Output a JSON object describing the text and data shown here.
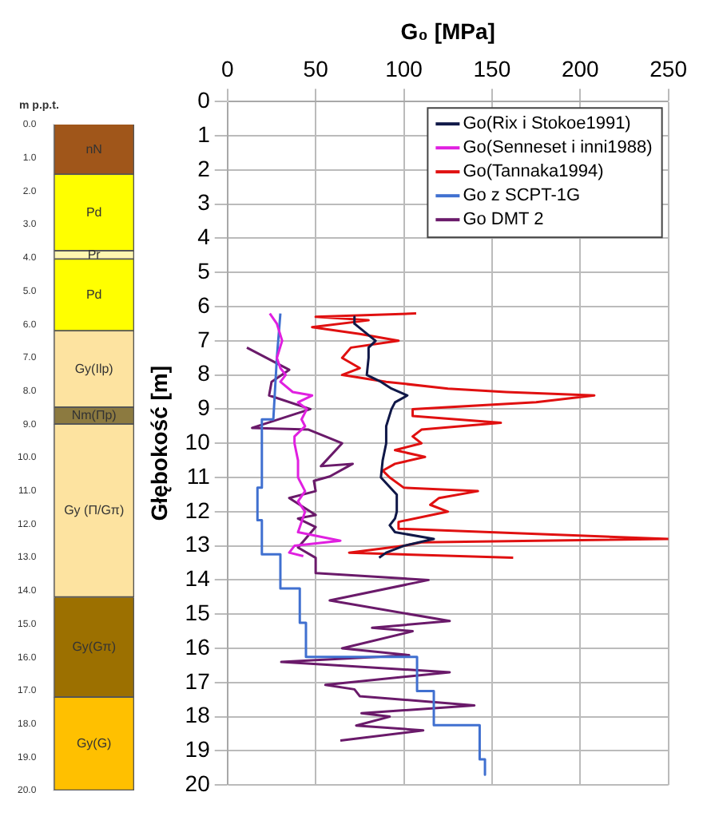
{
  "chart_data": [
    {
      "type": "bar",
      "stacked": true,
      "categories": [
        null
      ],
      "ylabel": "m p.p.t.",
      "ylim": [
        20,
        0
      ],
      "yticks": [
        {
          "value": 0,
          "label": "0.0"
        },
        {
          "value": 1,
          "label": "1.0"
        },
        {
          "value": 2,
          "label": "2.0"
        },
        {
          "value": 3,
          "label": "3.0"
        },
        {
          "value": 4,
          "label": "4.0"
        },
        {
          "value": 5,
          "label": "5.0"
        },
        {
          "value": 6,
          "label": "6.0"
        },
        {
          "value": 7,
          "label": "7.0"
        },
        {
          "value": 8,
          "label": "8.0"
        },
        {
          "value": 9,
          "label": "9.0"
        },
        {
          "value": 10,
          "label": "10.0"
        },
        {
          "value": 11,
          "label": "11.0"
        },
        {
          "value": 12,
          "label": "12.0"
        },
        {
          "value": 13,
          "label": "13.0"
        },
        {
          "value": 14,
          "label": "14.0"
        },
        {
          "value": 15,
          "label": "15.0"
        },
        {
          "value": 16,
          "label": "16.0"
        },
        {
          "value": 17,
          "label": "17.0"
        },
        {
          "value": 18,
          "label": "18.0"
        },
        {
          "value": 19,
          "label": "19.0"
        },
        {
          "value": 20,
          "label": "20.0"
        }
      ],
      "tick_labels": "y",
      "series": [
        {
          "name": "nN",
          "color": "#a0561a",
          "values": [
            1.5
          ]
        },
        {
          "name": "Pd",
          "color": "#ffff00",
          "values": [
            2.3
          ]
        },
        {
          "name": "Pr",
          "color": "#fff6b0",
          "values": [
            0.25
          ]
        },
        {
          "name": "Pd",
          "color": "#ffff00",
          "values": [
            2.15
          ]
        },
        {
          "name": "Gy(Ilp)",
          "color": "#fde3a0",
          "values": [
            2.3
          ]
        },
        {
          "name": "Nm(Πp)",
          "color": "#8c7a40",
          "values": [
            0.5
          ]
        },
        {
          "name": "Gy (Π/Gπ)",
          "color": "#fde3a0",
          "values": [
            5.2
          ]
        },
        {
          "name": "Gy(Gπ)",
          "color": "#9c7000",
          "values": [
            3.0
          ]
        },
        {
          "name": "Gy(G)",
          "color": "#ffc000",
          "values": [
            2.8
          ]
        }
      ]
    },
    {
      "type": "line",
      "xlabel": "G₀ [MPa]",
      "ylabel": "Głębokość [m]",
      "xlim": [
        0,
        250
      ],
      "xticks": [
        0,
        50,
        100,
        150,
        200,
        250
      ],
      "ylim": [
        20,
        0
      ],
      "yticks": [
        0,
        1,
        2,
        3,
        4,
        5,
        6,
        7,
        8,
        9,
        10,
        11,
        12,
        13,
        14,
        15,
        16,
        17,
        18,
        19,
        20
      ],
      "grid": true,
      "legend": "top right",
      "series": [
        {
          "name": "Go(Rix i Stokoe1991)",
          "color": "#101848",
          "x": [
            72,
            72,
            84,
            80,
            80,
            79,
            87,
            93,
            102,
            95,
            93,
            90,
            90,
            88,
            87,
            96,
            96,
            95,
            92,
            95,
            117,
            100,
            90,
            86
          ],
          "values": [
            6.3,
            6.5,
            7.0,
            7.2,
            7.5,
            8.0,
            8.2,
            8.4,
            8.6,
            8.8,
            9.0,
            9.5,
            10.0,
            10.5,
            11.0,
            11.5,
            12.0,
            12.2,
            12.4,
            12.6,
            12.8,
            13.0,
            13.2,
            13.35
          ]
        },
        {
          "name": "Go(Senneset i inni1988)",
          "color": "#e020e0",
          "x": [
            24,
            28,
            31,
            28,
            30,
            33,
            30,
            37,
            48,
            40,
            45,
            42,
            44,
            38,
            38,
            40,
            40,
            44,
            40,
            44,
            42,
            40,
            64,
            38,
            35,
            43
          ],
          "values": [
            6.2,
            6.5,
            7.0,
            7.5,
            7.8,
            8.0,
            8.2,
            8.5,
            8.6,
            8.8,
            9.0,
            9.3,
            9.5,
            9.8,
            10.0,
            10.5,
            11.0,
            11.4,
            11.7,
            12.0,
            12.3,
            12.6,
            12.85,
            13.0,
            13.2,
            13.3
          ]
        },
        {
          "name": "Go(Tannaka1994)",
          "color": "#e01010",
          "x": [
            107,
            50,
            80,
            48,
            75,
            97,
            70,
            65,
            75,
            65,
            90,
            125,
            158,
            208,
            175,
            105,
            105,
            155,
            110,
            105,
            110,
            95,
            112,
            95,
            88,
            92,
            100,
            142,
            120,
            115,
            125,
            97,
            97,
            250,
            110,
            100,
            69,
            162
          ],
          "values": [
            6.2,
            6.3,
            6.4,
            6.6,
            6.8,
            7.0,
            7.2,
            7.5,
            7.8,
            8.0,
            8.2,
            8.4,
            8.5,
            8.6,
            8.8,
            9.0,
            9.2,
            9.4,
            9.6,
            9.8,
            10.0,
            10.2,
            10.4,
            10.6,
            10.8,
            11.0,
            11.3,
            11.4,
            11.6,
            11.8,
            12.0,
            12.3,
            12.5,
            12.8,
            12.9,
            13.0,
            13.2,
            13.35
          ]
        },
        {
          "name": "Go z SCPT-1G",
          "color": "#4070d0",
          "x": [
            30,
            28,
            26,
            19.5,
            19.5,
            17,
            17,
            19.5,
            19.5,
            30,
            30,
            41,
            41,
            44.5,
            44.5,
            107.5,
            107.5,
            117,
            117,
            143,
            143,
            146,
            146
          ],
          "values": [
            6.2,
            7.5,
            9.3,
            9.3,
            11.3,
            11.3,
            12.25,
            12.25,
            13.25,
            13.25,
            14.25,
            14.25,
            15.25,
            15.25,
            16.25,
            16.25,
            17.25,
            17.25,
            18.25,
            18.25,
            19.25,
            19.25,
            19.7
          ]
        },
        {
          "name": "Go DMT 2",
          "color": "#6a1a6a",
          "x": [
            11,
            35,
            25,
            23.6,
            47,
            14,
            46,
            65,
            53,
            71,
            58,
            49,
            50,
            35,
            50,
            40,
            50,
            40,
            50,
            50,
            114,
            58,
            126,
            82,
            105,
            65,
            103,
            30.5,
            126,
            55.5,
            72,
            75,
            140,
            76,
            92,
            73,
            111,
            64
          ],
          "values": [
            7.2,
            7.85,
            8.2,
            8.6,
            9.0,
            9.55,
            9.6,
            10.0,
            10.67,
            10.6,
            10.97,
            11.1,
            11.4,
            11.6,
            12.1,
            12.2,
            12.45,
            13.05,
            13.35,
            13.8,
            14.0,
            14.6,
            15.2,
            15.4,
            15.5,
            16.0,
            16.2,
            16.4,
            16.7,
            17.07,
            17.2,
            17.4,
            17.67,
            17.9,
            18.0,
            18.26,
            18.4,
            18.7
          ]
        }
      ]
    }
  ]
}
